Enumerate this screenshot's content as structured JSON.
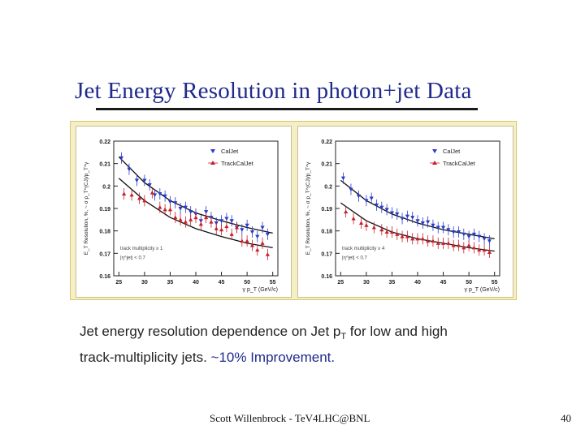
{
  "slide": {
    "title": "Jet Energy Resolution in photon+jet Data",
    "caption_line1_a": "Jet energy resolution dependence on Jet p",
    "caption_line1_sub": "T",
    "caption_line1_b": " for low and high",
    "caption_line2_a": "track-multiplicity jets.  ",
    "caption_line2_improve": "~10% Improvement.",
    "footer": "Scott Willenbrock - TeV4LHC@BNL",
    "page_number": "40"
  },
  "colors": {
    "title": "#1f2a8c",
    "caljet": "#2a3cc8",
    "trackcaljet": "#c8202a",
    "frame": "#f4efc6",
    "fit": "#111111"
  },
  "chart_data": [
    {
      "type": "scatter",
      "ylabel": "E_T Resolution, %, ~ σ p_T^(CJ)/p_T^γ",
      "xlabel": "γ p_T (GeV/c)",
      "xlim": [
        24,
        56
      ],
      "ylim": [
        0.16,
        0.22
      ],
      "xticks": [
        "25",
        "30",
        "35",
        "40",
        "45",
        "50",
        "55"
      ],
      "yticks": [
        "0.16",
        "0.17",
        "0.18",
        "0.19",
        "0.2",
        "0.21",
        "0.22"
      ],
      "annotation_line1": "track multiplicity ≥ 1",
      "annotation_line2": "|η^jet| < 0.7",
      "legend_position": "top-right",
      "series": [
        {
          "name": "CalJet",
          "marker": "triangle-down",
          "x": [
            25.5,
            27,
            28.5,
            30,
            31,
            32,
            33,
            34,
            35,
            36,
            37,
            38,
            39,
            40,
            41,
            42,
            43,
            44,
            45,
            46,
            47,
            48,
            49,
            50,
            51,
            52,
            53,
            54
          ],
          "y": [
            0.2125,
            0.2075,
            0.2025,
            0.2025,
            0.2005,
            0.196,
            0.1965,
            0.1955,
            0.193,
            0.1925,
            0.19,
            0.1905,
            0.1885,
            0.1875,
            0.1845,
            0.1885,
            0.186,
            0.1835,
            0.1845,
            0.1855,
            0.1845,
            0.1815,
            0.1805,
            0.1825,
            0.1795,
            0.1775,
            0.1815,
            0.1785
          ],
          "fit": [
            [
              25,
              0.213
            ],
            [
              30,
              0.2015
            ],
            [
              35,
              0.1935
            ],
            [
              40,
              0.188
            ],
            [
              45,
              0.1845
            ],
            [
              50,
              0.1815
            ],
            [
              55,
              0.179
            ]
          ]
        },
        {
          "name": "TrackCalJet",
          "marker": "triangle-up",
          "x": [
            26,
            27.5,
            29,
            30,
            31.5,
            33,
            34,
            35,
            36,
            37,
            38,
            39,
            40,
            41,
            42,
            43,
            44,
            45,
            46,
            47,
            48,
            49,
            50,
            51,
            52,
            53,
            54
          ],
          "y": [
            0.1965,
            0.196,
            0.1945,
            0.1935,
            0.197,
            0.1905,
            0.1895,
            0.1895,
            0.186,
            0.185,
            0.184,
            0.185,
            0.186,
            0.183,
            0.186,
            0.184,
            0.181,
            0.1805,
            0.182,
            0.1785,
            0.1815,
            0.1755,
            0.1755,
            0.1735,
            0.1715,
            0.1745,
            0.1695
          ],
          "fit": [
            [
              25,
              0.2035
            ],
            [
              30,
              0.1935
            ],
            [
              35,
              0.186
            ],
            [
              40,
              0.181
            ],
            [
              45,
              0.1775
            ],
            [
              50,
              0.1745
            ],
            [
              55,
              0.1725
            ]
          ]
        }
      ]
    },
    {
      "type": "scatter",
      "ylabel": "E_T Resolution, %, ~ σ p_T^(CJ)/p_T^γ",
      "xlabel": "γ p_T (GeV/c)",
      "xlim": [
        24,
        56
      ],
      "ylim": [
        0.16,
        0.22
      ],
      "xticks": [
        "25",
        "30",
        "35",
        "40",
        "45",
        "50",
        "55"
      ],
      "yticks": [
        "0.16",
        "0.17",
        "0.18",
        "0.19",
        "0.2",
        "0.21",
        "0.22"
      ],
      "annotation_line1": "track multiplicity ≥ 4",
      "annotation_line2": "|η^jet| < 0.7",
      "legend_position": "top-right",
      "series": [
        {
          "name": "CalJet",
          "marker": "triangle-down",
          "x": [
            25.5,
            27,
            28.5,
            30,
            31,
            32,
            33,
            34,
            35,
            36,
            37,
            38,
            39,
            40,
            41,
            42,
            43,
            44,
            45,
            46,
            47,
            48,
            49,
            50,
            51,
            52,
            53,
            54
          ],
          "y": [
            0.2035,
            0.1985,
            0.1955,
            0.1935,
            0.1945,
            0.1915,
            0.1905,
            0.1895,
            0.188,
            0.1875,
            0.1855,
            0.1865,
            0.186,
            0.1845,
            0.1835,
            0.184,
            0.1825,
            0.1815,
            0.1815,
            0.1805,
            0.1795,
            0.1795,
            0.1785,
            0.1775,
            0.1785,
            0.1775,
            0.1765,
            0.1755
          ],
          "fit": [
            [
              25,
              0.2025
            ],
            [
              30,
              0.1935
            ],
            [
              35,
              0.1875
            ],
            [
              40,
              0.1835
            ],
            [
              45,
              0.1805
            ],
            [
              50,
              0.1785
            ],
            [
              55,
              0.1765
            ]
          ]
        },
        {
          "name": "TrackCalJet",
          "marker": "triangle-up",
          "x": [
            26,
            27.5,
            29,
            30,
            31.5,
            33,
            34,
            35,
            36,
            37,
            38,
            39,
            40,
            41,
            42,
            43,
            44,
            45,
            46,
            47,
            48,
            49,
            50,
            51,
            52,
            53,
            54
          ],
          "y": [
            0.1885,
            0.1855,
            0.1835,
            0.1825,
            0.1815,
            0.1805,
            0.1795,
            0.1795,
            0.1785,
            0.1775,
            0.1775,
            0.1765,
            0.1765,
            0.1765,
            0.1755,
            0.1755,
            0.1745,
            0.1745,
            0.1745,
            0.1735,
            0.1735,
            0.1725,
            0.1735,
            0.1725,
            0.1715,
            0.1715,
            0.1705
          ],
          "fit": [
            [
              25,
              0.1925
            ],
            [
              30,
              0.1845
            ],
            [
              35,
              0.1795
            ],
            [
              40,
              0.1765
            ],
            [
              45,
              0.1745
            ],
            [
              50,
              0.1725
            ],
            [
              55,
              0.171
            ]
          ]
        }
      ]
    }
  ]
}
